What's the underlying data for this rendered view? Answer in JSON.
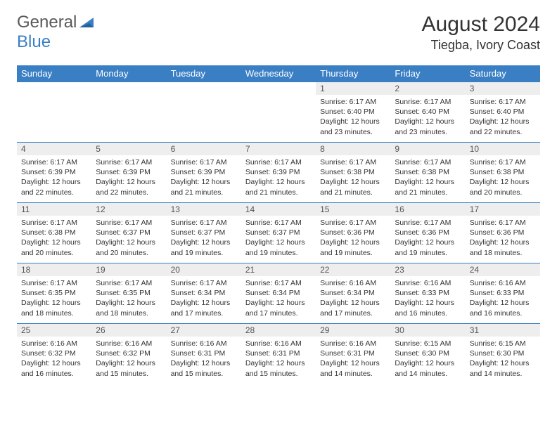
{
  "logo": {
    "word1": "General",
    "word2": "Blue"
  },
  "title": "August 2024",
  "location": "Tiegba, Ivory Coast",
  "dayHeaders": [
    "Sunday",
    "Monday",
    "Tuesday",
    "Wednesday",
    "Thursday",
    "Friday",
    "Saturday"
  ],
  "colors": {
    "header_bg": "#3a7fc4",
    "header_text": "#ffffff",
    "daynum_bg": "#eeeeee",
    "border": "#3a7fc4"
  },
  "weeks": [
    [
      {
        "n": "",
        "sr": "",
        "ss": "",
        "dl": "",
        "empty": true
      },
      {
        "n": "",
        "sr": "",
        "ss": "",
        "dl": "",
        "empty": true
      },
      {
        "n": "",
        "sr": "",
        "ss": "",
        "dl": "",
        "empty": true
      },
      {
        "n": "",
        "sr": "",
        "ss": "",
        "dl": "",
        "empty": true
      },
      {
        "n": "1",
        "sr": "Sunrise: 6:17 AM",
        "ss": "Sunset: 6:40 PM",
        "dl": "Daylight: 12 hours and 23 minutes."
      },
      {
        "n": "2",
        "sr": "Sunrise: 6:17 AM",
        "ss": "Sunset: 6:40 PM",
        "dl": "Daylight: 12 hours and 23 minutes."
      },
      {
        "n": "3",
        "sr": "Sunrise: 6:17 AM",
        "ss": "Sunset: 6:40 PM",
        "dl": "Daylight: 12 hours and 22 minutes."
      }
    ],
    [
      {
        "n": "4",
        "sr": "Sunrise: 6:17 AM",
        "ss": "Sunset: 6:39 PM",
        "dl": "Daylight: 12 hours and 22 minutes."
      },
      {
        "n": "5",
        "sr": "Sunrise: 6:17 AM",
        "ss": "Sunset: 6:39 PM",
        "dl": "Daylight: 12 hours and 22 minutes."
      },
      {
        "n": "6",
        "sr": "Sunrise: 6:17 AM",
        "ss": "Sunset: 6:39 PM",
        "dl": "Daylight: 12 hours and 21 minutes."
      },
      {
        "n": "7",
        "sr": "Sunrise: 6:17 AM",
        "ss": "Sunset: 6:39 PM",
        "dl": "Daylight: 12 hours and 21 minutes."
      },
      {
        "n": "8",
        "sr": "Sunrise: 6:17 AM",
        "ss": "Sunset: 6:38 PM",
        "dl": "Daylight: 12 hours and 21 minutes."
      },
      {
        "n": "9",
        "sr": "Sunrise: 6:17 AM",
        "ss": "Sunset: 6:38 PM",
        "dl": "Daylight: 12 hours and 21 minutes."
      },
      {
        "n": "10",
        "sr": "Sunrise: 6:17 AM",
        "ss": "Sunset: 6:38 PM",
        "dl": "Daylight: 12 hours and 20 minutes."
      }
    ],
    [
      {
        "n": "11",
        "sr": "Sunrise: 6:17 AM",
        "ss": "Sunset: 6:38 PM",
        "dl": "Daylight: 12 hours and 20 minutes."
      },
      {
        "n": "12",
        "sr": "Sunrise: 6:17 AM",
        "ss": "Sunset: 6:37 PM",
        "dl": "Daylight: 12 hours and 20 minutes."
      },
      {
        "n": "13",
        "sr": "Sunrise: 6:17 AM",
        "ss": "Sunset: 6:37 PM",
        "dl": "Daylight: 12 hours and 19 minutes."
      },
      {
        "n": "14",
        "sr": "Sunrise: 6:17 AM",
        "ss": "Sunset: 6:37 PM",
        "dl": "Daylight: 12 hours and 19 minutes."
      },
      {
        "n": "15",
        "sr": "Sunrise: 6:17 AM",
        "ss": "Sunset: 6:36 PM",
        "dl": "Daylight: 12 hours and 19 minutes."
      },
      {
        "n": "16",
        "sr": "Sunrise: 6:17 AM",
        "ss": "Sunset: 6:36 PM",
        "dl": "Daylight: 12 hours and 19 minutes."
      },
      {
        "n": "17",
        "sr": "Sunrise: 6:17 AM",
        "ss": "Sunset: 6:36 PM",
        "dl": "Daylight: 12 hours and 18 minutes."
      }
    ],
    [
      {
        "n": "18",
        "sr": "Sunrise: 6:17 AM",
        "ss": "Sunset: 6:35 PM",
        "dl": "Daylight: 12 hours and 18 minutes."
      },
      {
        "n": "19",
        "sr": "Sunrise: 6:17 AM",
        "ss": "Sunset: 6:35 PM",
        "dl": "Daylight: 12 hours and 18 minutes."
      },
      {
        "n": "20",
        "sr": "Sunrise: 6:17 AM",
        "ss": "Sunset: 6:34 PM",
        "dl": "Daylight: 12 hours and 17 minutes."
      },
      {
        "n": "21",
        "sr": "Sunrise: 6:17 AM",
        "ss": "Sunset: 6:34 PM",
        "dl": "Daylight: 12 hours and 17 minutes."
      },
      {
        "n": "22",
        "sr": "Sunrise: 6:16 AM",
        "ss": "Sunset: 6:34 PM",
        "dl": "Daylight: 12 hours and 17 minutes."
      },
      {
        "n": "23",
        "sr": "Sunrise: 6:16 AM",
        "ss": "Sunset: 6:33 PM",
        "dl": "Daylight: 12 hours and 16 minutes."
      },
      {
        "n": "24",
        "sr": "Sunrise: 6:16 AM",
        "ss": "Sunset: 6:33 PM",
        "dl": "Daylight: 12 hours and 16 minutes."
      }
    ],
    [
      {
        "n": "25",
        "sr": "Sunrise: 6:16 AM",
        "ss": "Sunset: 6:32 PM",
        "dl": "Daylight: 12 hours and 16 minutes."
      },
      {
        "n": "26",
        "sr": "Sunrise: 6:16 AM",
        "ss": "Sunset: 6:32 PM",
        "dl": "Daylight: 12 hours and 15 minutes."
      },
      {
        "n": "27",
        "sr": "Sunrise: 6:16 AM",
        "ss": "Sunset: 6:31 PM",
        "dl": "Daylight: 12 hours and 15 minutes."
      },
      {
        "n": "28",
        "sr": "Sunrise: 6:16 AM",
        "ss": "Sunset: 6:31 PM",
        "dl": "Daylight: 12 hours and 15 minutes."
      },
      {
        "n": "29",
        "sr": "Sunrise: 6:16 AM",
        "ss": "Sunset: 6:31 PM",
        "dl": "Daylight: 12 hours and 14 minutes."
      },
      {
        "n": "30",
        "sr": "Sunrise: 6:15 AM",
        "ss": "Sunset: 6:30 PM",
        "dl": "Daylight: 12 hours and 14 minutes."
      },
      {
        "n": "31",
        "sr": "Sunrise: 6:15 AM",
        "ss": "Sunset: 6:30 PM",
        "dl": "Daylight: 12 hours and 14 minutes."
      }
    ]
  ]
}
